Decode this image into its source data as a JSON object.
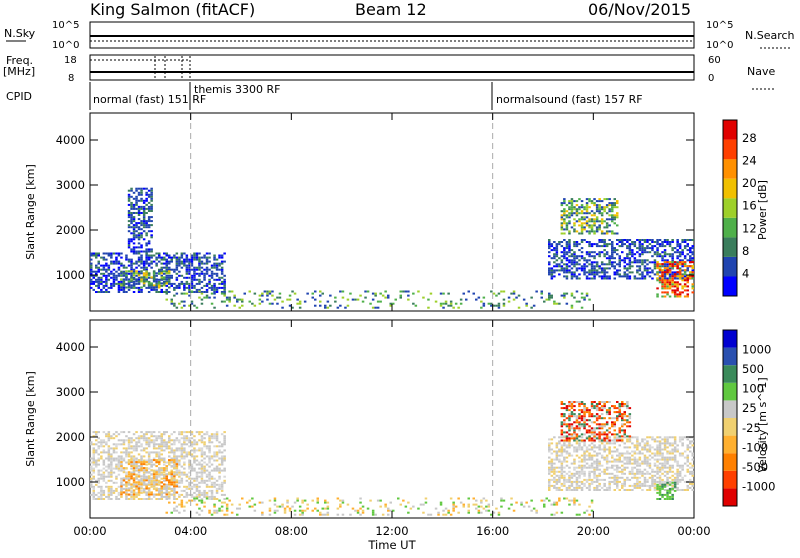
{
  "header": {
    "station": "King Salmon (fitACF)",
    "beam": "Beam 12",
    "date": "06/Nov/2015"
  },
  "strip": {
    "nsky_label": "N.Sky",
    "nsky_ticks": [
      "10^5",
      "10^0"
    ],
    "nsearch_label": "N.Search",
    "nsearch_ticks": [
      "10^5",
      "10^0"
    ],
    "freq_label": "Freq.",
    "freq_unit": "[MHz]",
    "freq_ticks": [
      "18",
      "8"
    ],
    "nave_label": "Nave",
    "nave_ticks": [
      "60",
      "0"
    ],
    "cpid_label": "CPID",
    "cpid_segments": [
      {
        "label": "normal (fast) 151 RF",
        "start_hour": 0
      },
      {
        "label": "themis 3300 RF",
        "start_hour": 4
      },
      {
        "label": "normalsound (fast) 157 RF",
        "start_hour": 16
      }
    ]
  },
  "chart_data": [
    {
      "type": "heatmap",
      "name": "power-panel",
      "ylabel": "Slant Range [km]",
      "xlabel": "Time UT",
      "x_ticks": [
        "00:00",
        "04:00",
        "08:00",
        "12:00",
        "16:00",
        "20:00",
        "00:00"
      ],
      "x_range_hours": [
        0,
        24
      ],
      "y_ticks": [
        1000,
        2000,
        3000,
        4000
      ],
      "ylim": [
        200,
        4600
      ],
      "colorbar": {
        "label": "Power [dB]",
        "ticks": [
          "4",
          "8",
          "12",
          "16",
          "20",
          "24",
          "28"
        ],
        "range": [
          0,
          30
        ],
        "colors": [
          "#0000ff",
          "#2044b0",
          "#3a7d5c",
          "#4fb04a",
          "#9ed02a",
          "#f0c000",
          "#ff9000",
          "#ff4000",
          "#e00000"
        ]
      },
      "regions": [
        {
          "hours": [
            0.0,
            5.3
          ],
          "range_km": [
            600,
            1500
          ],
          "level": "low"
        },
        {
          "hours": [
            1.2,
            3.2
          ],
          "range_km": [
            700,
            1100
          ],
          "level": "mid"
        },
        {
          "hours": [
            1.5,
            2.5
          ],
          "range_km": [
            1500,
            2900
          ],
          "level": "low"
        },
        {
          "hours": [
            18.2,
            24.0
          ],
          "range_km": [
            900,
            1800
          ],
          "level": "low"
        },
        {
          "hours": [
            18.7,
            21.0
          ],
          "range_km": [
            1900,
            2700
          ],
          "level": "mid"
        },
        {
          "hours": [
            22.5,
            24.0
          ],
          "range_km": [
            500,
            1300
          ],
          "level": "high"
        },
        {
          "hours": [
            3.0,
            20.0
          ],
          "range_km": [
            250,
            650
          ],
          "level": "sparse"
        }
      ]
    },
    {
      "type": "heatmap",
      "name": "velocity-panel",
      "ylabel": "Slant Range [km]",
      "xlabel": "Time UT",
      "x_ticks": [
        "00:00",
        "04:00",
        "08:00",
        "12:00",
        "16:00",
        "20:00",
        "00:00"
      ],
      "x_range_hours": [
        0,
        24
      ],
      "y_ticks": [
        1000,
        2000,
        3000,
        4000
      ],
      "ylim": [
        200,
        4600
      ],
      "colorbar": {
        "label": "Velocity [m s^-1]",
        "ticks": [
          "1000",
          "500",
          "100",
          "25",
          "-25",
          "-100",
          "-500",
          "-1000"
        ],
        "range": [
          -1000,
          1000
        ],
        "colors": [
          "#e00000",
          "#ff4000",
          "#ff8000",
          "#ffb030",
          "#f0d070",
          "#c8c8c8",
          "#60c840",
          "#3a8a5a",
          "#2a50b0",
          "#0000d0"
        ]
      },
      "regions": [
        {
          "hours": [
            0.0,
            5.3
          ],
          "range_km": [
            600,
            2100
          ],
          "level": "gray"
        },
        {
          "hours": [
            1.2,
            3.5
          ],
          "range_km": [
            700,
            1500
          ],
          "level": "orange"
        },
        {
          "hours": [
            18.2,
            24.0
          ],
          "range_km": [
            800,
            2000
          ],
          "level": "gray"
        },
        {
          "hours": [
            18.7,
            21.5
          ],
          "range_km": [
            1900,
            2800
          ],
          "level": "red"
        },
        {
          "hours": [
            22.5,
            23.3
          ],
          "range_km": [
            600,
            1000
          ],
          "level": "green"
        },
        {
          "hours": [
            3.0,
            20.0
          ],
          "range_km": [
            250,
            650
          ],
          "level": "sparse"
        }
      ]
    }
  ]
}
